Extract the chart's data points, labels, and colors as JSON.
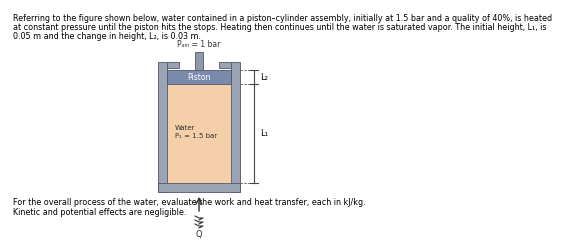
{
  "bg_color": "#ffffff",
  "text_color": "#000000",
  "paragraph1": "Referring to the figure shown below, water contained in a piston–cylinder assembly, initially at 1.5 bar and a quality of 40%, is heated",
  "paragraph2": "at constant pressure until the piston hits the stops. Heating then continues until the water is saturated vapor. The initial height, L₁, is",
  "paragraph3": "0.05 m and the change in height, L₂, is 0.03 m.",
  "paragraph4": "For the overall process of the water, evaluate the work and heat transfer, each in kJ/kg.",
  "paragraph5": "Kinetic and potential effects are negligible.",
  "wall_color": "#9aa4b4",
  "fill_color": "#f5ceaa",
  "piston_color": "#7a8aaa",
  "rod_color": "#9099aa",
  "patm_label": "Pₐₘ = 1 bar",
  "water_label_line1": "Water",
  "water_label_line2": "P₁ = 1.5 bar",
  "L2_label": "L₂",
  "L1_label": "L₁",
  "Q_label": "Q",
  "dim_line_color": "#444444",
  "font_size_main": 5.8,
  "font_size_label": 5.5,
  "font_size_dim": 6.0
}
